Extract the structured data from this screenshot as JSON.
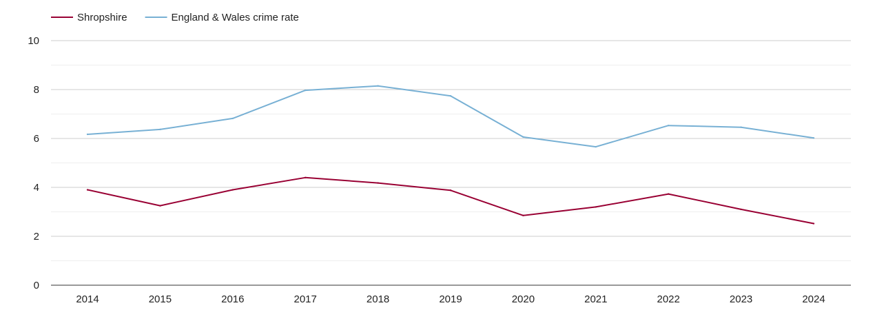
{
  "colors": {
    "shropshire": "#990033",
    "england_wales": "#77b0d4",
    "grid": "#cccccc",
    "minor_grid": "#eeeeee",
    "axis": "#333333"
  },
  "chart_data": {
    "type": "line",
    "title": "",
    "xlabel": "",
    "ylabel": "",
    "x": [
      "2014",
      "2015",
      "2016",
      "2017",
      "2018",
      "2019",
      "2020",
      "2021",
      "2022",
      "2023",
      "2024"
    ],
    "ylim": [
      0,
      10
    ],
    "yticks": [
      0,
      2,
      4,
      6,
      8,
      10
    ],
    "grid": true,
    "legend_position": "top-left",
    "series": [
      {
        "name": "Shropshire",
        "color": "#990033",
        "values": [
          3.9,
          3.25,
          3.9,
          4.4,
          4.18,
          3.88,
          2.85,
          3.2,
          3.73,
          3.1,
          2.52
        ]
      },
      {
        "name": "England & Wales crime rate",
        "color": "#77b0d4",
        "values": [
          6.17,
          6.37,
          6.82,
          7.97,
          8.15,
          7.74,
          6.06,
          5.66,
          6.53,
          6.46,
          6.02
        ]
      }
    ]
  }
}
